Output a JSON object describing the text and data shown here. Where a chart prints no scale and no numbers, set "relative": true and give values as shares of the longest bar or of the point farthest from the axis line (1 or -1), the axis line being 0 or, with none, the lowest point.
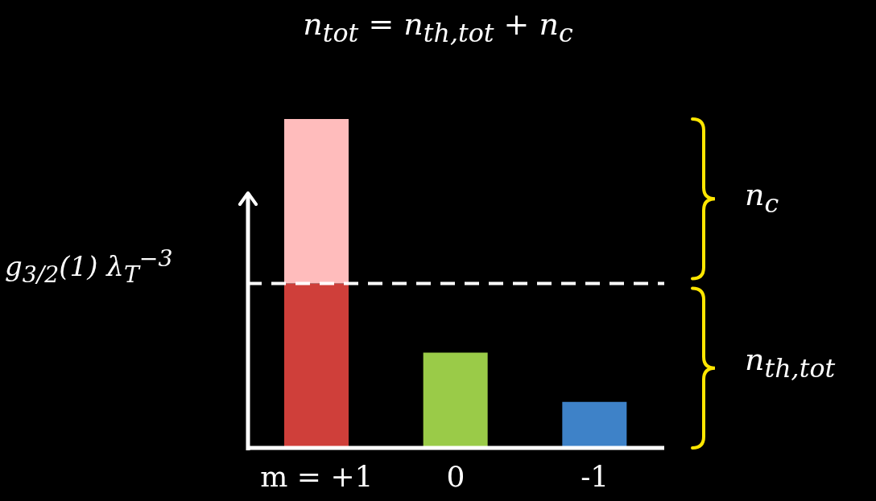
{
  "chart_data": {
    "type": "bar",
    "title": "n$_{tot}$ = n$_{th,tot}$ + n$_{c}$",
    "categories": [
      "m = +1",
      "0",
      "-1"
    ],
    "relative": true,
    "stacked": true,
    "series": [
      {
        "values": [
          0.5,
          0.29,
          0.14
        ],
        "colors": [
          "#cf3f3a",
          "#9acb48",
          "#3e82c8"
        ]
      },
      {
        "values": [
          0.5,
          0,
          0
        ],
        "colors": [
          "#ffbcbc",
          "#ffbcbc",
          "#ffbcbc"
        ]
      }
    ],
    "ref_lines": [
      {
        "axis": "y",
        "value": 0.5,
        "label": "g$_{3/2}$(1) λ$_{T}$$^{−3}$",
        "color": "#ffffff",
        "line_style": "dashed"
      }
    ],
    "annotations": [
      "n$_{c}$",
      "n$_{th,tot}$"
    ]
  }
}
